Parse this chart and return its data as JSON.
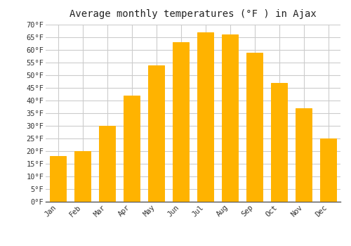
{
  "title": "Average monthly temperatures (°F ) in Ajax",
  "months": [
    "Jan",
    "Feb",
    "Mar",
    "Apr",
    "May",
    "Jun",
    "Jul",
    "Aug",
    "Sep",
    "Oct",
    "Nov",
    "Dec"
  ],
  "values": [
    18,
    20,
    30,
    42,
    54,
    63,
    67,
    66,
    59,
    47,
    37,
    25
  ],
  "bar_color": "#FFA500",
  "bar_edge_color": "#CC8800",
  "background_color": "#FFFFFF",
  "plot_bg_color": "#FFFFFF",
  "grid_color": "#CCCCCC",
  "title_fontsize": 10,
  "tick_fontsize": 7.5,
  "ylim": [
    0,
    70
  ],
  "ytick_step": 5,
  "yticks": [
    0,
    5,
    10,
    15,
    20,
    25,
    30,
    35,
    40,
    45,
    50,
    55,
    60,
    65,
    70
  ]
}
